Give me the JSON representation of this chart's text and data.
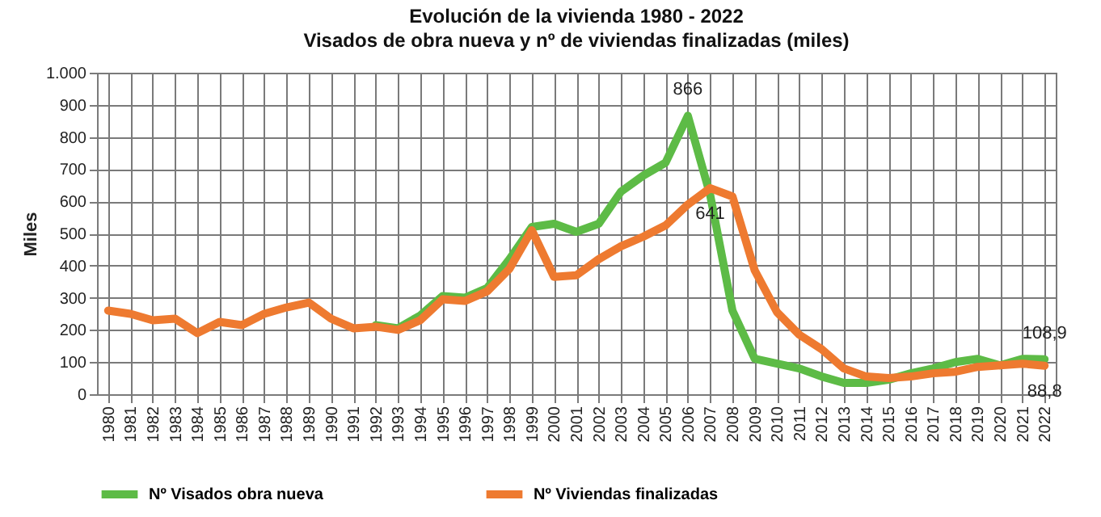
{
  "chart_data": {
    "type": "line",
    "title": "Evolución de la vivienda 1980 - 2022",
    "subtitle": "Visados de obra nueva y nº de viviendas finalizadas (miles)",
    "ylabel": "Miles",
    "categories": [
      "1980",
      "1981",
      "1982",
      "1983",
      "1984",
      "1985",
      "1986",
      "1987",
      "1988",
      "1989",
      "1990",
      "1991",
      "1992",
      "1993",
      "1994",
      "1995",
      "1996",
      "1997",
      "1998",
      "1999",
      "2000",
      "2001",
      "2002",
      "2003",
      "2004",
      "2005",
      "2006",
      "2007",
      "2008",
      "2009",
      "2010",
      "2011",
      "2012",
      "2013",
      "2014",
      "2015",
      "2016",
      "2017",
      "2018",
      "2019",
      "2020",
      "2021",
      "2022"
    ],
    "series": [
      {
        "name": "Nº Visados obra nueva",
        "color": "#5dbb46",
        "values": [
          null,
          null,
          null,
          null,
          null,
          null,
          null,
          null,
          null,
          null,
          null,
          null,
          215,
          205,
          245,
          305,
          300,
          330,
          420,
          520,
          530,
          505,
          530,
          630,
          680,
          720,
          866,
          620,
          260,
          110,
          95,
          80,
          55,
          35,
          35,
          45,
          65,
          80,
          100,
          110,
          90,
          110,
          108.9
        ]
      },
      {
        "name": "Nº Viviendas finalizadas",
        "color": "#ee7a30",
        "values": [
          260,
          250,
          230,
          235,
          190,
          225,
          215,
          250,
          270,
          285,
          235,
          205,
          210,
          200,
          230,
          295,
          290,
          320,
          390,
          510,
          365,
          370,
          420,
          460,
          490,
          525,
          590,
          641,
          615,
          385,
          255,
          185,
          140,
          80,
          55,
          50,
          55,
          65,
          70,
          85,
          90,
          95,
          88.8
        ]
      }
    ],
    "ylim": [
      0,
      1000
    ],
    "yticks": [
      0,
      100,
      200,
      300,
      400,
      500,
      600,
      700,
      800,
      900,
      {
        "value": 1000,
        "label": "1.000"
      }
    ],
    "annotations": [
      {
        "text": "866",
        "x": "2006",
        "y": 866
      },
      {
        "text": "641",
        "x": "2007",
        "y": 641
      },
      {
        "text": "108,9",
        "x": "2022",
        "y": 108.9
      },
      {
        "text": "88,8",
        "x": "2022",
        "y": 88.8
      }
    ],
    "grid": true,
    "legend": "bottom",
    "line_style": "solid",
    "marker": "none"
  }
}
